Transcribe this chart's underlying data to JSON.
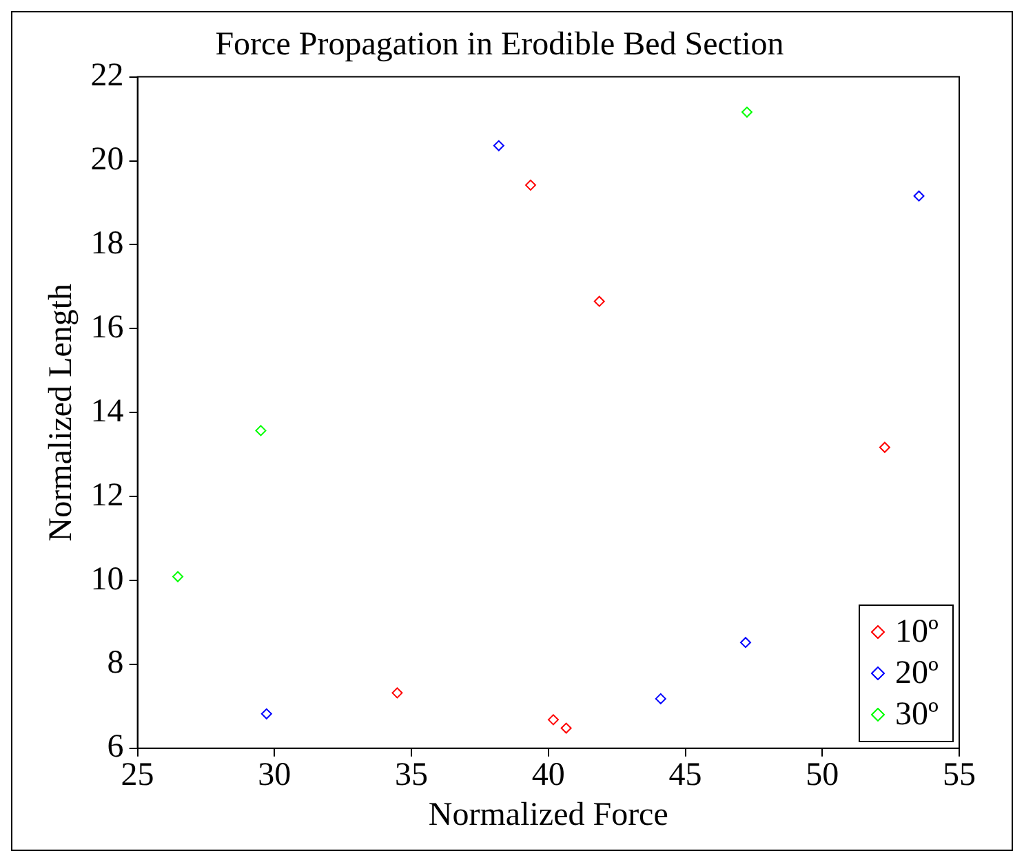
{
  "chart_data": {
    "type": "scatter",
    "title": "Force Propagation in Erodible Bed Section",
    "xlabel": "Normalized Force",
    "ylabel": "Normalized Length",
    "xlim": [
      25,
      55
    ],
    "xticks": [
      25,
      30,
      35,
      40,
      45,
      50,
      55
    ],
    "ylim": [
      6,
      22
    ],
    "yticks": [
      6,
      8,
      10,
      12,
      14,
      16,
      18,
      20,
      22
    ],
    "grid": false,
    "legend": "bottom right",
    "marker": "diamond",
    "series": [
      {
        "name": "10º",
        "color": "#ff0000",
        "x": [
          39.35,
          41.86,
          52.28,
          34.48,
          40.18,
          40.65
        ],
        "values": [
          19.42,
          16.65,
          13.17,
          7.32,
          6.68,
          6.48
        ]
      },
      {
        "name": "20º",
        "color": "#0000ff",
        "x": [
          38.19,
          53.53,
          47.2,
          44.1,
          29.71
        ],
        "values": [
          20.36,
          19.16,
          8.52,
          7.18,
          6.82
        ]
      },
      {
        "name": "30º",
        "color": "#00ff00",
        "x": [
          47.25,
          29.5,
          26.47
        ],
        "values": [
          21.16,
          13.57,
          10.09
        ]
      }
    ]
  }
}
